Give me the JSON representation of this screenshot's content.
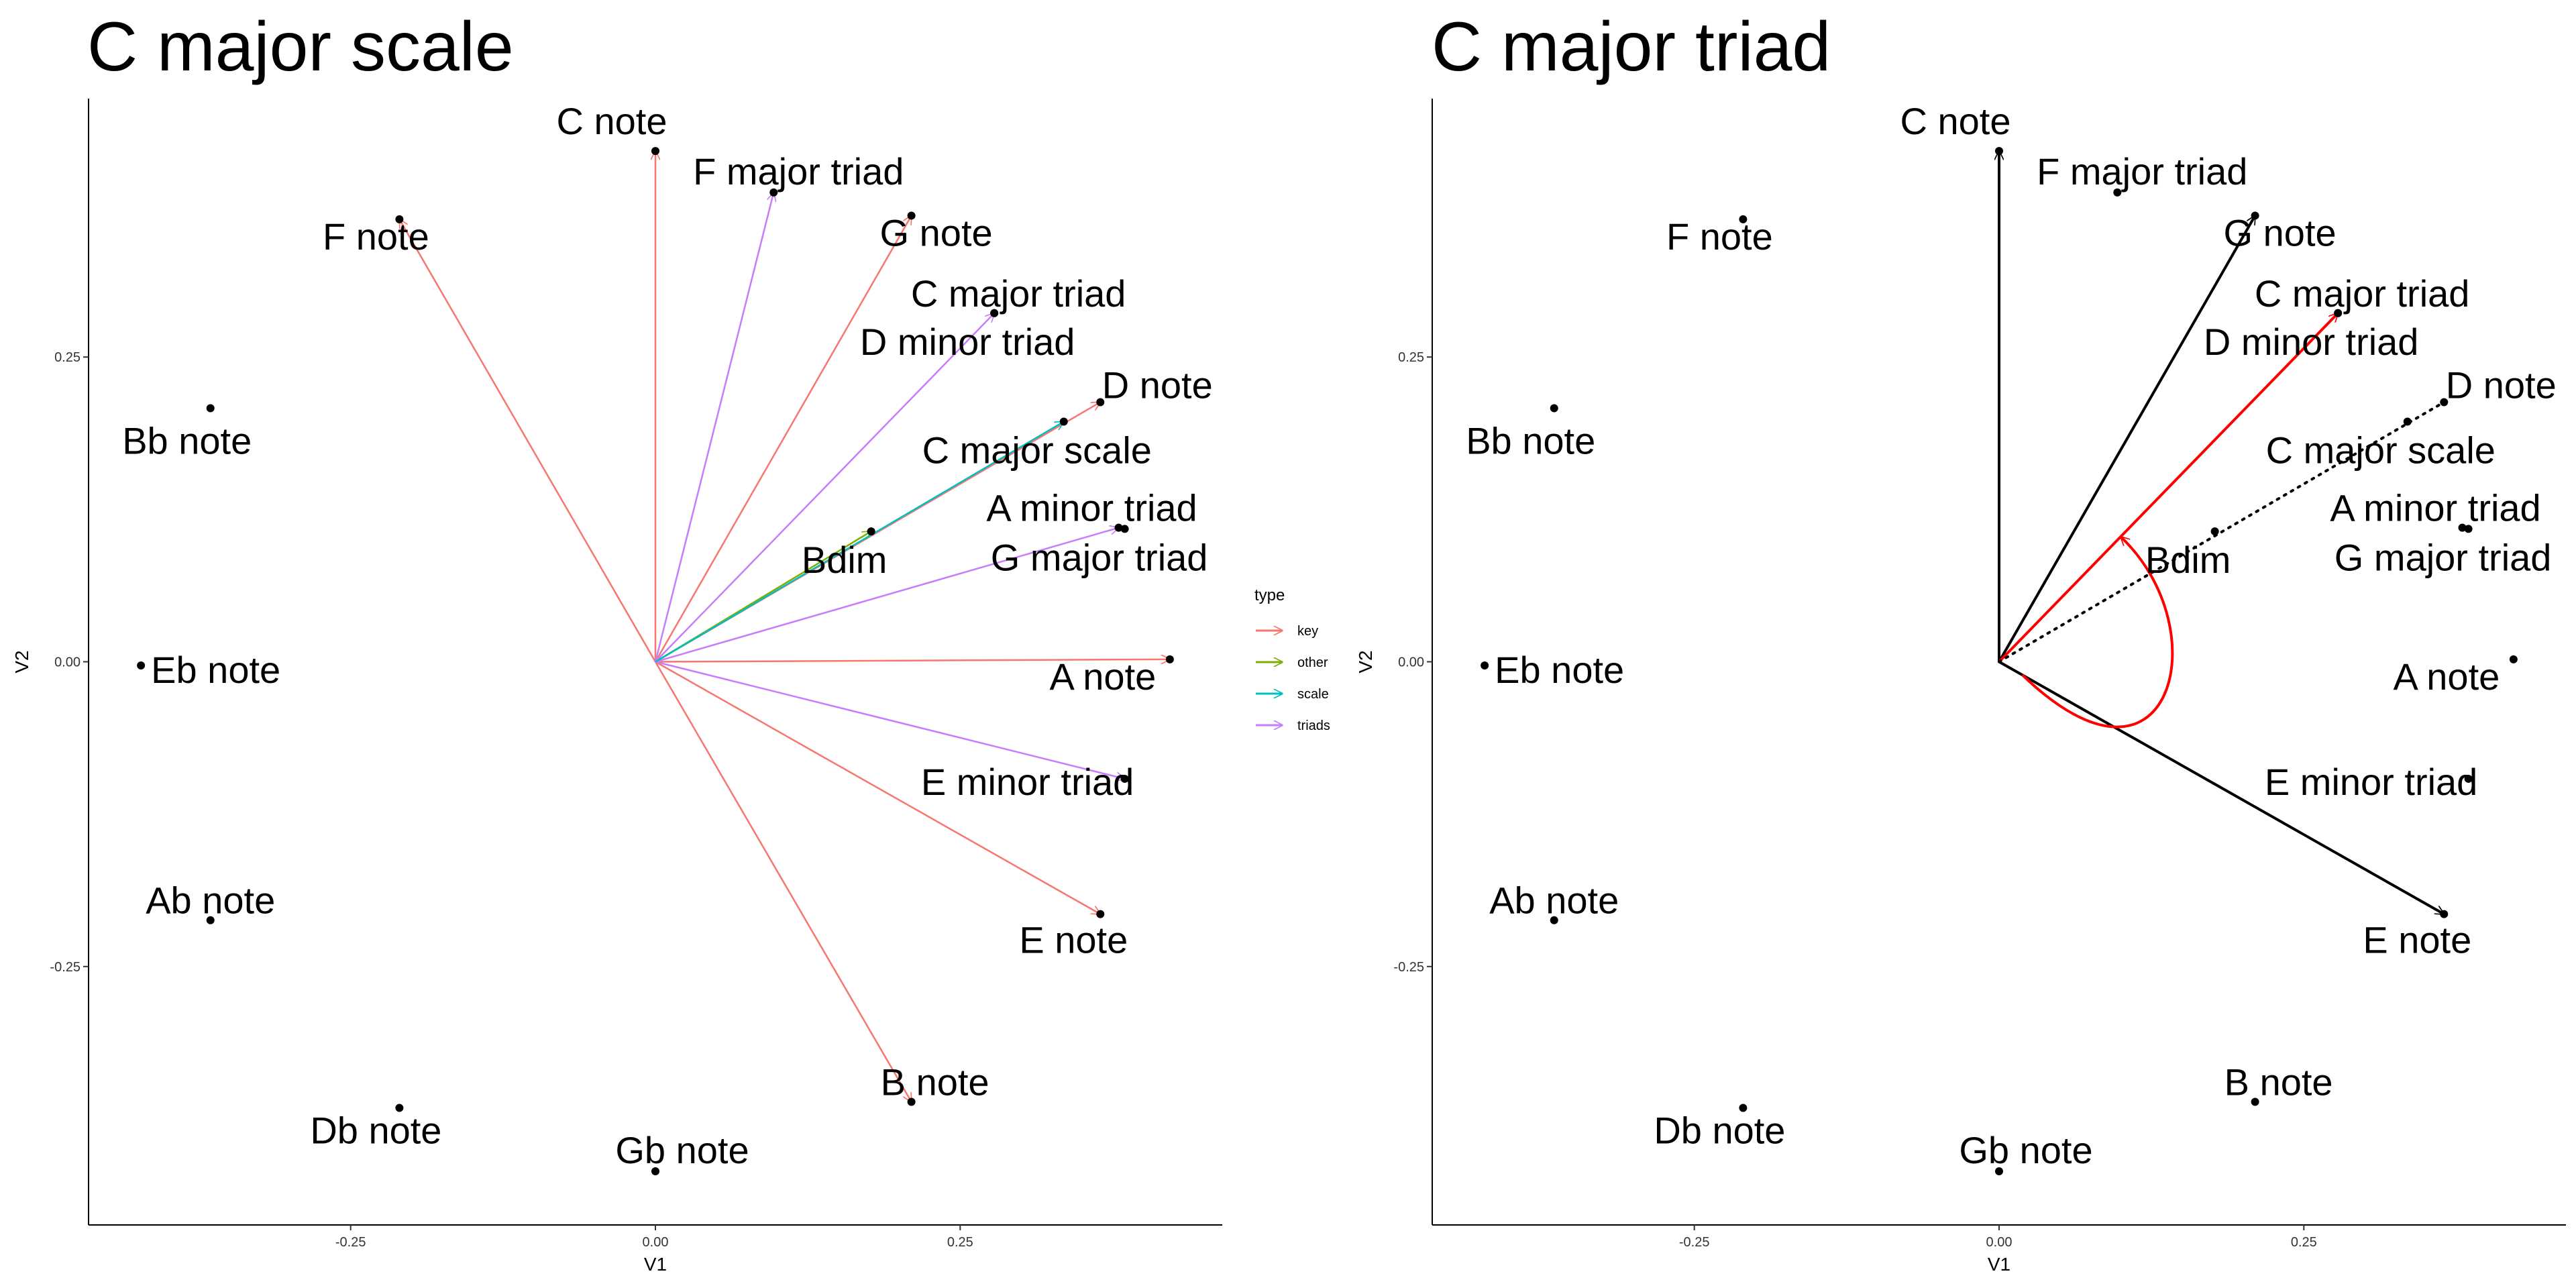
{
  "chart_data": [
    {
      "type": "scatter",
      "title": "C major scale",
      "xlabel": "V1",
      "ylabel": "V2",
      "xlim": [
        -0.465,
        0.465
      ],
      "ylim": [
        -0.462,
        0.462
      ],
      "x_ticks": [
        -0.25,
        0.0,
        0.25
      ],
      "y_ticks": [
        -0.25,
        0.0,
        0.25
      ],
      "x_tick_labels": [
        "-0.25",
        "0.00",
        "0.25"
      ],
      "y_tick_labels": [
        "-0.25",
        "0.00",
        "0.25"
      ],
      "grid": false,
      "points": [
        {
          "label": "C note",
          "x": 0.0,
          "y": 0.419
        },
        {
          "label": "F major triad",
          "x": 0.097,
          "y": 0.385
        },
        {
          "label": "F note",
          "x": -0.21,
          "y": 0.363
        },
        {
          "label": "G note",
          "x": 0.21,
          "y": 0.366
        },
        {
          "label": "C major triad",
          "x": 0.278,
          "y": 0.286
        },
        {
          "label": "D minor triad",
          "x": 0.278,
          "y": 0.286
        },
        {
          "label": "D note",
          "x": 0.365,
          "y": 0.213
        },
        {
          "label": "C major scale",
          "x": 0.335,
          "y": 0.197
        },
        {
          "label": "Bb note",
          "x": -0.365,
          "y": 0.208
        },
        {
          "label": "A minor triad",
          "x": 0.38,
          "y": 0.11
        },
        {
          "label": "G major triad",
          "x": 0.385,
          "y": 0.109
        },
        {
          "label": "Bdim",
          "x": 0.177,
          "y": 0.107
        },
        {
          "label": "Eb note",
          "x": -0.422,
          "y": -0.003
        },
        {
          "label": "A note",
          "x": 0.422,
          "y": 0.002
        },
        {
          "label": "E minor triad",
          "x": 0.385,
          "y": -0.096
        },
        {
          "label": "E note",
          "x": 0.365,
          "y": -0.207
        },
        {
          "label": "Ab note",
          "x": -0.365,
          "y": -0.212
        },
        {
          "label": "B note",
          "x": 0.21,
          "y": -0.361
        },
        {
          "label": "Db note",
          "x": -0.21,
          "y": -0.366
        },
        {
          "label": "Gb note",
          "x": 0.0,
          "y": -0.418
        }
      ],
      "arrows": [
        {
          "to": "F note",
          "type": "key"
        },
        {
          "to": "C note",
          "type": "key"
        },
        {
          "to": "G note",
          "type": "key"
        },
        {
          "to": "D note",
          "type": "key"
        },
        {
          "to": "A note",
          "type": "key"
        },
        {
          "to": "E note",
          "type": "key"
        },
        {
          "to": "B note",
          "type": "key"
        },
        {
          "to": "F major triad",
          "type": "triads"
        },
        {
          "to": "C major triad",
          "type": "triads"
        },
        {
          "to": "A minor triad",
          "type": "triads"
        },
        {
          "to": "E minor triad",
          "type": "triads"
        },
        {
          "to": "Bdim",
          "type": "other"
        },
        {
          "to": "C major scale",
          "type": "scale"
        }
      ],
      "legend": {
        "title": "type",
        "position": "right",
        "entries": [
          {
            "name": "key",
            "color": "#F8766D"
          },
          {
            "name": "other",
            "color": "#7CAE00"
          },
          {
            "name": "scale",
            "color": "#00BFC4"
          },
          {
            "name": "triads",
            "color": "#C77CFF"
          }
        ]
      }
    },
    {
      "type": "scatter",
      "title": "C major triad",
      "xlabel": "V1",
      "ylabel": "V2",
      "xlim": [
        -0.465,
        0.465
      ],
      "ylim": [
        -0.462,
        0.462
      ],
      "x_ticks": [
        -0.25,
        0.0,
        0.25
      ],
      "y_ticks": [
        -0.25,
        0.0,
        0.25
      ],
      "x_tick_labels": [
        "-0.25",
        "0.00",
        "0.25"
      ],
      "y_tick_labels": [
        "-0.25",
        "0.00",
        "0.25"
      ],
      "grid": false,
      "points": [
        {
          "label": "C note",
          "x": 0.0,
          "y": 0.419
        },
        {
          "label": "F major triad",
          "x": 0.097,
          "y": 0.385
        },
        {
          "label": "F note",
          "x": -0.21,
          "y": 0.363
        },
        {
          "label": "G note",
          "x": 0.21,
          "y": 0.366
        },
        {
          "label": "C major triad",
          "x": 0.278,
          "y": 0.286
        },
        {
          "label": "D minor triad",
          "x": 0.278,
          "y": 0.286
        },
        {
          "label": "D note",
          "x": 0.365,
          "y": 0.213
        },
        {
          "label": "C major scale",
          "x": 0.335,
          "y": 0.197
        },
        {
          "label": "Bb note",
          "x": -0.365,
          "y": 0.208
        },
        {
          "label": "A minor triad",
          "x": 0.38,
          "y": 0.11
        },
        {
          "label": "G major triad",
          "x": 0.385,
          "y": 0.109
        },
        {
          "label": "Bdim",
          "x": 0.177,
          "y": 0.107
        },
        {
          "label": "Eb note",
          "x": -0.422,
          "y": -0.003
        },
        {
          "label": "A note",
          "x": 0.422,
          "y": 0.002
        },
        {
          "label": "E minor triad",
          "x": 0.385,
          "y": -0.096
        },
        {
          "label": "E note",
          "x": 0.365,
          "y": -0.207
        },
        {
          "label": "Ab note",
          "x": -0.365,
          "y": -0.212
        },
        {
          "label": "B note",
          "x": 0.21,
          "y": -0.361
        },
        {
          "label": "Db note",
          "x": -0.21,
          "y": -0.366
        },
        {
          "label": "Gb note",
          "x": 0.0,
          "y": -0.418
        }
      ],
      "arrows": [
        {
          "to": "C note",
          "color": "#000000",
          "style": "solid"
        },
        {
          "to": "G note",
          "color": "#000000",
          "style": "solid"
        },
        {
          "to": "E note",
          "color": "#000000",
          "style": "solid"
        },
        {
          "to": "C major triad",
          "color": "#FF0000",
          "style": "solid"
        },
        {
          "to": "D note",
          "color": "#000000",
          "style": "dotted"
        }
      ],
      "angle_arc": {
        "from": "E note",
        "to": "C major triad",
        "color": "#FF0000"
      }
    }
  ]
}
